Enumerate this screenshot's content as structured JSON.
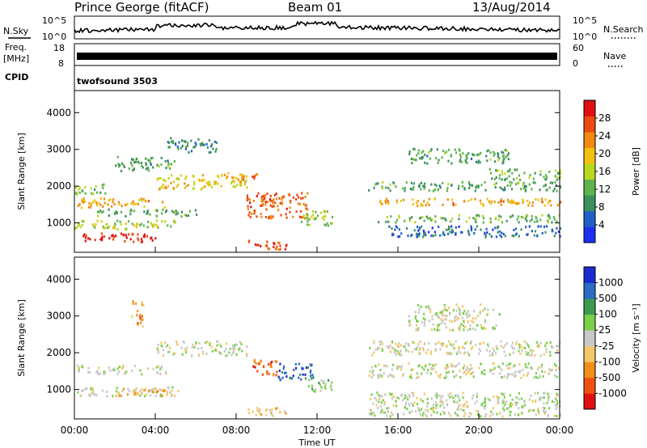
{
  "header": {
    "station": "Prince George (fitACF)",
    "beam": "Beam 01",
    "date": "13/Aug/2014"
  },
  "top_panels": {
    "nsky_label": "N.Sky",
    "nsky_ticks": [
      "10^5",
      "10^0"
    ],
    "nsearch_label": "N.Search",
    "nsearch_ticks": [
      "10^5",
      "10^0"
    ],
    "freq_label": "Freq.",
    "freq_unit": "[MHz]",
    "freq_ticks": [
      "18",
      "8"
    ],
    "nave_label": "Nave",
    "nave_ticks": [
      "60",
      "0"
    ],
    "cpid_label": "CPID",
    "cpid_value": "twofsound 3503"
  },
  "colors": {
    "power_scale": [
      "#1e2ff0",
      "#2060c8",
      "#3d8f5e",
      "#5fb34f",
      "#b8d820",
      "#f2c010",
      "#f08a10",
      "#ec4a10",
      "#e01010"
    ],
    "velocity_scale": [
      "#e01010",
      "#f05010",
      "#f09018",
      "#f2c86a",
      "#c8c8c8",
      "#7bd04a",
      "#3c9a52",
      "#2e6cc2",
      "#1a2ad0"
    ]
  },
  "chart_data": [
    {
      "type": "heatmap",
      "name": "power",
      "ylabel": "Slant Range [km]",
      "yticks": [
        1000,
        2000,
        3000,
        4000
      ],
      "ylim": [
        200,
        4600
      ],
      "xlim": [
        0,
        24
      ],
      "colorbar_label": "Power [dB]",
      "colorbar_ticks": [
        "4",
        "8",
        "12",
        "16",
        "20",
        "24",
        "28"
      ],
      "colorbar_range": [
        0,
        30
      ],
      "bands": [
        {
          "t0": 0.0,
          "t1": 4.5,
          "r0": 1400,
          "r1": 1650,
          "value": 20
        },
        {
          "t0": 0.0,
          "t1": 1.5,
          "r0": 1750,
          "r1": 2050,
          "value": 12
        },
        {
          "t0": 0.3,
          "t1": 4.0,
          "r0": 450,
          "r1": 700,
          "value": 28
        },
        {
          "t0": 0.0,
          "t1": 5.0,
          "r0": 800,
          "r1": 1050,
          "value": 14
        },
        {
          "t0": 1.0,
          "t1": 6.0,
          "r0": 1150,
          "r1": 1350,
          "value": 10
        },
        {
          "t0": 2.0,
          "t1": 5.0,
          "r0": 2400,
          "r1": 2800,
          "value": 10
        },
        {
          "t0": 4.0,
          "t1": 8.5,
          "r0": 1900,
          "r1": 2300,
          "value": 18
        },
        {
          "t0": 7.5,
          "t1": 9.0,
          "r0": 2150,
          "r1": 2350,
          "value": 22
        },
        {
          "t0": 4.5,
          "t1": 7.0,
          "r0": 2900,
          "r1": 3300,
          "value": 8
        },
        {
          "t0": 8.5,
          "t1": 11.5,
          "r0": 1100,
          "r1": 1800,
          "value": 24
        },
        {
          "t0": 11.0,
          "t1": 12.8,
          "r0": 900,
          "r1": 1300,
          "value": 14
        },
        {
          "t0": 8.5,
          "t1": 10.5,
          "r0": 250,
          "r1": 500,
          "value": 26
        },
        {
          "t0": 15.0,
          "t1": 24.0,
          "r0": 1450,
          "r1": 1650,
          "value": 20
        },
        {
          "t0": 14.5,
          "t1": 24.0,
          "r0": 1850,
          "r1": 2100,
          "value": 10
        },
        {
          "t0": 15.0,
          "t1": 24.0,
          "r0": 1000,
          "r1": 1200,
          "value": 12
        },
        {
          "t0": 16.5,
          "t1": 21.5,
          "r0": 2600,
          "r1": 3000,
          "value": 10
        },
        {
          "t0": 20.5,
          "t1": 24.0,
          "r0": 2150,
          "r1": 2450,
          "value": 12
        },
        {
          "t0": 15.5,
          "t1": 24.0,
          "r0": 600,
          "r1": 900,
          "value": 6
        }
      ]
    },
    {
      "type": "heatmap",
      "name": "velocity",
      "ylabel": "Slant Range [km]",
      "yticks": [
        1000,
        2000,
        3000,
        4000
      ],
      "ylim": [
        200,
        4600
      ],
      "xlim": [
        0,
        24
      ],
      "colorbar_label": "Velocity [m s⁻¹]",
      "colorbar_ticks": [
        "-1000",
        "-500",
        "-100",
        "-25",
        "25",
        "100",
        "500",
        "1000"
      ],
      "colorbar_range": [
        -1200,
        1200
      ],
      "bands": [
        {
          "t0": 0.0,
          "t1": 4.5,
          "r0": 1400,
          "r1": 1650,
          "value": 0
        },
        {
          "t0": 0.0,
          "t1": 5.0,
          "r0": 800,
          "r1": 1050,
          "value": -5
        },
        {
          "t0": 2.0,
          "t1": 5.5,
          "r0": 800,
          "r1": 1000,
          "value": -300
        },
        {
          "t0": 4.0,
          "t1": 8.5,
          "r0": 1900,
          "r1": 2300,
          "value": 0
        },
        {
          "t0": 2.8,
          "t1": 3.4,
          "r0": 2700,
          "r1": 3400,
          "value": -400
        },
        {
          "t0": 8.8,
          "t1": 10.0,
          "r0": 1300,
          "r1": 1800,
          "value": -700
        },
        {
          "t0": 10.0,
          "t1": 11.8,
          "r0": 1250,
          "r1": 1700,
          "value": 800
        },
        {
          "t0": 11.5,
          "t1": 12.8,
          "r0": 900,
          "r1": 1250,
          "value": 200
        },
        {
          "t0": 8.5,
          "t1": 10.5,
          "r0": 250,
          "r1": 500,
          "value": -300
        },
        {
          "t0": 14.5,
          "t1": 24.0,
          "r0": 1300,
          "r1": 1700,
          "value": 0
        },
        {
          "t0": 14.5,
          "t1": 24.0,
          "r0": 1900,
          "r1": 2300,
          "value": 0
        },
        {
          "t0": 16.5,
          "t1": 21.0,
          "r0": 2600,
          "r1": 3300,
          "value": 0
        },
        {
          "t0": 14.5,
          "t1": 24.0,
          "r0": 250,
          "r1": 900,
          "value": 60
        }
      ]
    }
  ],
  "xaxis": {
    "label": "Time UT",
    "ticks": [
      "00:00",
      "04:00",
      "08:00",
      "12:00",
      "16:00",
      "20:00",
      "00:00"
    ],
    "tick_hours": [
      0,
      4,
      8,
      12,
      16,
      20,
      24
    ]
  }
}
